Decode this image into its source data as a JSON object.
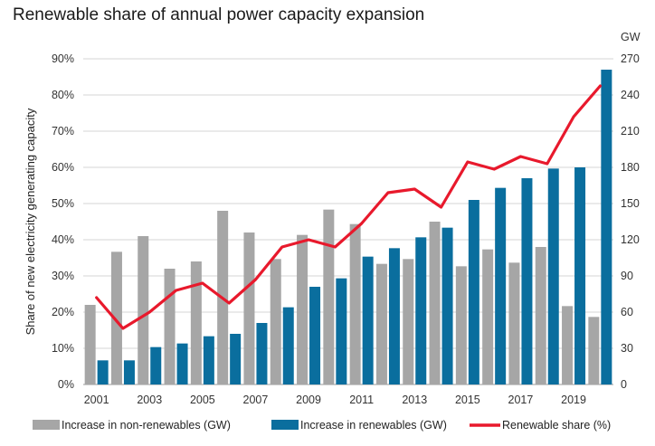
{
  "chart_data": {
    "type": "bar",
    "title": "Renewable share of annual power capacity expansion",
    "ylabel": "Share of new electricity generating capacity",
    "y2label": "GW",
    "ylim": [
      0,
      90
    ],
    "y2lim": [
      0,
      270
    ],
    "yticks": [
      "0%",
      "10%",
      "20%",
      "30%",
      "40%",
      "50%",
      "60%",
      "70%",
      "80%",
      "90%"
    ],
    "y2ticks": [
      "0",
      "30",
      "60",
      "90",
      "120",
      "150",
      "180",
      "210",
      "240",
      "270"
    ],
    "xtick_labels": [
      "2001",
      "2003",
      "2005",
      "2007",
      "2009",
      "2011",
      "2013",
      "2015",
      "2017",
      "2019"
    ],
    "categories": [
      "2001",
      "2002",
      "2003",
      "2004",
      "2005",
      "2006",
      "2007",
      "2008",
      "2009",
      "2010",
      "2011",
      "2012",
      "2013",
      "2014",
      "2015",
      "2016",
      "2017",
      "2018",
      "2019",
      "2020"
    ],
    "grid": true,
    "legend_position": "bottom",
    "series": [
      {
        "name": "Increase in non-renewables (GW)",
        "kind": "bar",
        "axis": "right",
        "color": "#a6a6a6",
        "values": [
          66,
          110,
          123,
          96,
          102,
          144,
          126,
          104,
          124,
          145,
          133,
          100,
          104,
          135,
          98,
          112,
          101,
          114,
          65,
          56
        ]
      },
      {
        "name": "Increase in renewables (GW)",
        "kind": "bar",
        "axis": "right",
        "color": "#0a6e9e",
        "values": [
          20,
          20,
          31,
          34,
          40,
          42,
          51,
          64,
          81,
          88,
          106,
          113,
          122,
          130,
          153,
          163,
          171,
          179,
          180,
          261
        ]
      },
      {
        "name": "Renewable share (%)",
        "kind": "line",
        "axis": "left",
        "color": "#e8192c",
        "values": [
          24,
          15.5,
          20,
          26,
          28,
          22.5,
          29,
          38,
          40,
          38,
          44.5,
          53,
          54,
          49,
          61.5,
          59.5,
          63,
          61,
          74,
          82.5
        ]
      }
    ]
  }
}
